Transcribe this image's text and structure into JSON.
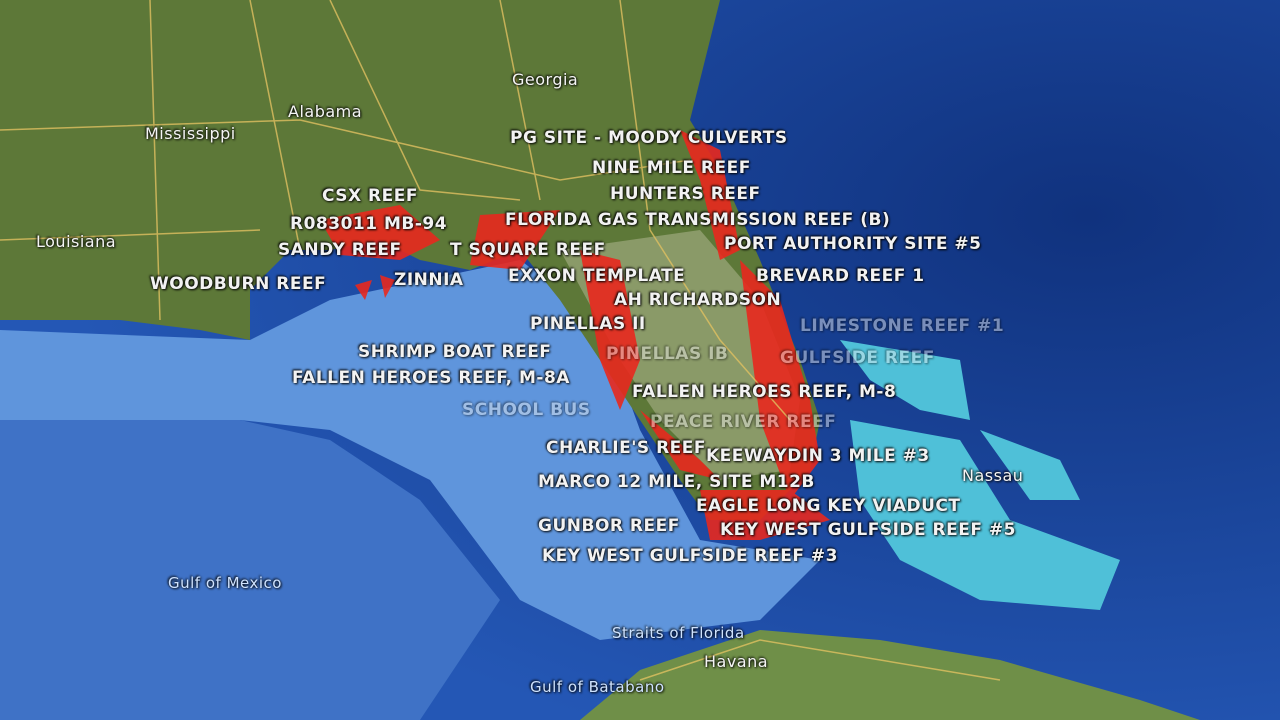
{
  "map": {
    "places": {
      "georgia": "Georgia",
      "alabama": "Alabama",
      "mississippi": "Mississippi",
      "louisiana": "Louisiana",
      "nassau": "Nassau",
      "havana": "Havana"
    },
    "water_bodies": {
      "gulf_of_mexico": "Gulf of Mexico",
      "straits_of_florida": "Straits of Florida",
      "gulf_of_batabano": "Gulf of Batabano"
    },
    "reef_labels": [
      "PG SITE - MOODY CULVERTS",
      "NINE MILE REEF",
      "HUNTERS REEF",
      "CSX REEF",
      "R083011 MB-94",
      "FLORIDA GAS TRANSMISSION REEF (B)",
      "PORT AUTHORITY SITE #5",
      "SANDY REEF",
      "T SQUARE REEF",
      "WOODBURN REEF",
      "ZINNIA",
      "EXXON TEMPLATE",
      "BREVARD REEF 1",
      "AH RICHARDSON",
      "PINELLAS II",
      "SHRIMP BOAT REEF",
      "FALLEN HEROES REEF, M-8A",
      "FALLEN HEROES REEF, M-8",
      "CHARLIE'S REEF",
      "KEEWAYDIN 3 MILE #3",
      "MARCO 12 MILE, SITE M12B",
      "EAGLE LONG KEY VIADUCT",
      "GUNBOR REEF",
      "KEY WEST GULFSIDE REEF #5",
      "KEY WEST GULFSIDE REEF #3"
    ],
    "faint_labels": [
      "SCHOOL BUS",
      "PINELLAS IB",
      "PEACE RIVER REEF",
      "LIMESTONE REEF #1",
      "GULFSIDE REEF"
    ],
    "colors": {
      "ocean_deep": "#1a49a8",
      "ocean_shelf": "#5d93db",
      "land": "#5e7a3a",
      "reef_marker": "#e8281e",
      "road": "#e0c060"
    }
  }
}
